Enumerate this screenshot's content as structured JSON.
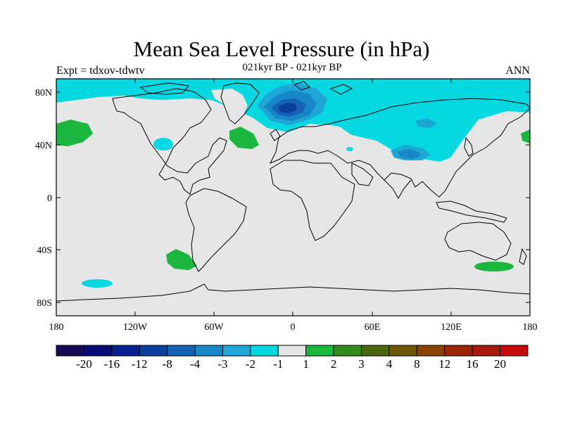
{
  "header": {
    "title": "Mean Sea Level Pressure (in hPa)",
    "subtitle": "021kyr BP - 021kyr BP",
    "left_label": "Expt = tdxov-tdwtv",
    "right_label": "ANN"
  },
  "map": {
    "lat_ticks": [
      "80N",
      "40N",
      "0",
      "40S",
      "80S"
    ],
    "lon_ticks": [
      "180",
      "120W",
      "60W",
      "0",
      "60E",
      "120E",
      "180"
    ]
  },
  "colorbar": {
    "labels": [
      "-20",
      "-16",
      "-12",
      "-8",
      "-4",
      "-3",
      "-2",
      "-1",
      "1",
      "2",
      "3",
      "4",
      "8",
      "12",
      "16",
      "20"
    ],
    "colors": [
      "#140a55",
      "#0b0d77",
      "#08218f",
      "#0b3f9e",
      "#1362b4",
      "#1787c6",
      "#1ea7d6",
      "#05d8e0",
      "#e6e6e6",
      "#1bb63d",
      "#338b1c",
      "#4b680f",
      "#6e5604",
      "#8a4302",
      "#9c2505",
      "#a5190e",
      "#c70b0b"
    ]
  },
  "colors": {
    "background_field": "#e6e6e6",
    "coast": "#000000"
  }
}
